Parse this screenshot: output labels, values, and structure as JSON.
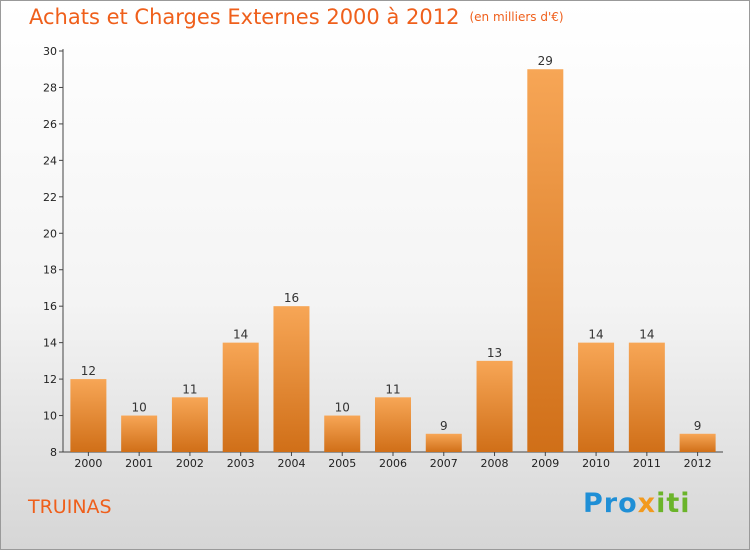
{
  "title": "Achats et Charges Externes 2000 à 2012",
  "subtitle": "(en milliers d'€)",
  "commune": "TRUINAS",
  "logo": {
    "part1": "Pro",
    "part2": "x",
    "part3": "iti"
  },
  "colors": {
    "bar_light": "#f7a656",
    "bar_dark": "#d06f18",
    "title": "#ef5f1b"
  },
  "chart_data": {
    "type": "bar",
    "categories": [
      "2000",
      "2001",
      "2002",
      "2003",
      "2004",
      "2005",
      "2006",
      "2007",
      "2008",
      "2009",
      "2010",
      "2011",
      "2012"
    ],
    "values": [
      12,
      10,
      11,
      14,
      16,
      10,
      11,
      9,
      13,
      29,
      14,
      14,
      9
    ],
    "ylim": [
      8,
      30
    ],
    "yticks": [
      8,
      10,
      12,
      14,
      16,
      18,
      20,
      22,
      24,
      26,
      28,
      30
    ],
    "grid": false,
    "legend": "none"
  }
}
